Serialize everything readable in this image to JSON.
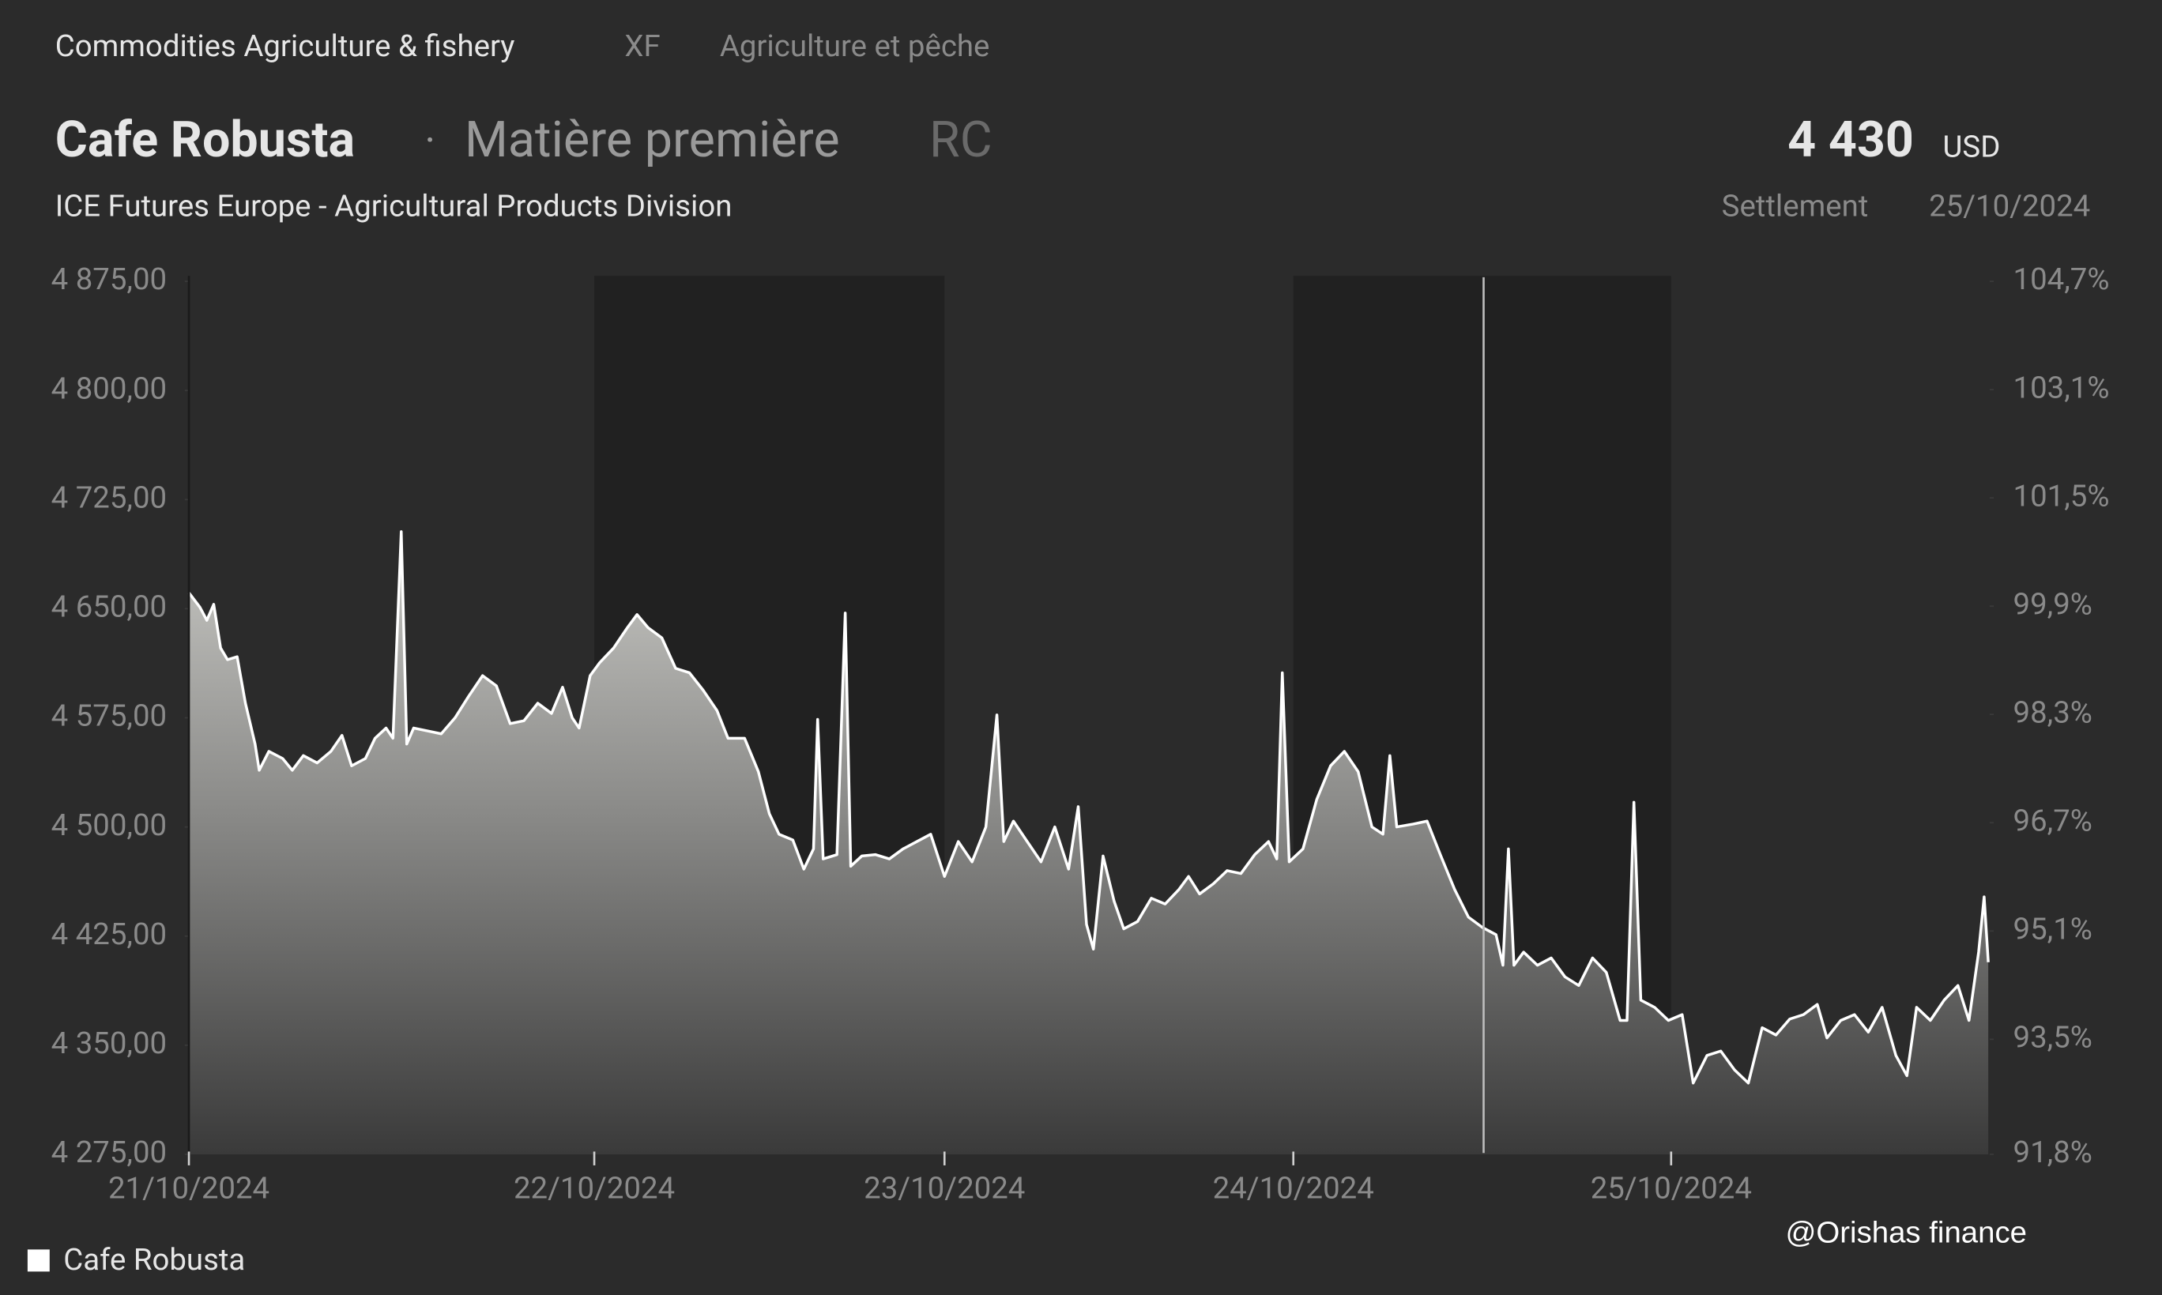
{
  "header": {
    "category": "Commodities Agriculture & fishery",
    "code": "XF",
    "category_fr": "Agriculture et pêche",
    "name": "Cafe Robusta",
    "separator": "·",
    "kind": "Matière première",
    "symbol": "RC",
    "price": "4 430",
    "currency": "USD",
    "exchange": "ICE Futures Europe - Agricultural Products Division",
    "price_type": "Settlement",
    "price_date": "25/10/2024"
  },
  "watermark": "@Orishas finance",
  "chart_data": {
    "type": "area",
    "x": [
      0,
      8,
      13,
      18,
      23,
      28,
      35,
      41,
      48,
      51,
      58,
      68,
      75,
      83,
      93,
      103,
      111,
      118,
      128,
      135,
      143,
      148,
      154,
      158,
      163,
      173,
      183,
      193,
      203,
      213,
      223,
      233,
      243,
      253,
      263,
      271,
      278,
      283,
      291,
      298,
      308,
      318,
      325,
      333,
      343,
      353,
      363,
      373,
      383,
      391,
      403,
      413,
      421,
      428,
      438,
      446,
      453,
      456,
      460,
      470,
      476,
      480,
      488,
      498,
      508,
      518,
      528,
      538,
      548,
      558,
      568,
      578,
      586,
      591,
      598,
      608,
      618,
      628,
      638,
      645,
      651,
      656,
      663,
      671,
      678,
      688,
      698,
      708,
      718,
      725,
      733,
      743,
      753,
      763,
      773,
      783,
      789,
      793,
      798,
      808,
      818,
      828,
      838,
      848,
      858,
      866,
      871,
      876,
      888,
      898,
      908,
      918,
      928,
      938,
      948,
      953,
      957,
      961,
      968,
      978,
      988,
      998,
      1008,
      1018,
      1028,
      1038,
      1043,
      1048,
      1053,
      1063,
      1073,
      1083,
      1091,
      1101,
      1111,
      1121,
      1131,
      1141,
      1151,
      1161,
      1171,
      1181,
      1188,
      1198,
      1208,
      1218,
      1228,
      1238,
      1246,
      1253,
      1263,
      1273,
      1283,
      1291,
      1298,
      1302,
      1305
    ],
    "series": [
      {
        "name": "Cafe Robusta",
        "color": "#ffffff",
        "values": [
          4661,
          4651,
          4642,
          4653,
          4623,
          4615,
          4617,
          4585,
          4557,
          4539,
          4552,
          4547,
          4539,
          4549,
          4544,
          4552,
          4563,
          4542,
          4547,
          4561,
          4568,
          4561,
          4703,
          4557,
          4568,
          4566,
          4564,
          4575,
          4590,
          4604,
          4597,
          4571,
          4573,
          4585,
          4578,
          4596,
          4575,
          4568,
          4604,
          4613,
          4623,
          4637,
          4646,
          4637,
          4630,
          4609,
          4606,
          4594,
          4580,
          4561,
          4561,
          4538,
          4509,
          4495,
          4491,
          4471,
          4485,
          4574,
          4478,
          4481,
          4647,
          4473,
          4480,
          4481,
          4478,
          4485,
          4490,
          4495,
          4466,
          4490,
          4476,
          4500,
          4577,
          4490,
          4504,
          4490,
          4476,
          4500,
          4471,
          4514,
          4433,
          4416,
          4480,
          4449,
          4430,
          4435,
          4451,
          4447,
          4457,
          4466,
          4454,
          4461,
          4470,
          4468,
          4481,
          4490,
          4478,
          4606,
          4476,
          4485,
          4519,
          4542,
          4552,
          4538,
          4500,
          4495,
          4549,
          4500,
          4502,
          4504,
          4480,
          4457,
          4438,
          4431,
          4426,
          4405,
          4485,
          4405,
          4414,
          4405,
          4410,
          4397,
          4391,
          4410,
          4400,
          4367,
          4367,
          4517,
          4381,
          4376,
          4367,
          4371,
          4324,
          4343,
          4346,
          4333,
          4324,
          4362,
          4357,
          4368,
          4371,
          4378,
          4355,
          4367,
          4371,
          4359,
          4376,
          4343,
          4329,
          4376,
          4367,
          4381,
          4391,
          4367,
          4414,
          4452,
          4407
        ]
      }
    ],
    "xlim": [
      0,
      1305
    ],
    "xticks": [
      {
        "value": 0,
        "label": "21/10/2024"
      },
      {
        "value": 294,
        "label": "22/10/2024"
      },
      {
        "value": 548,
        "label": "23/10/2024"
      },
      {
        "value": 801,
        "label": "24/10/2024"
      },
      {
        "value": 1075,
        "label": "25/10/2024"
      }
    ],
    "ylim": [
      4275,
      4875
    ],
    "yticks": [
      {
        "value": 4875,
        "label": "4 875,00"
      },
      {
        "value": 4800,
        "label": "4 800,00"
      },
      {
        "value": 4725,
        "label": "4 725,00"
      },
      {
        "value": 4650,
        "label": "4 650,00"
      },
      {
        "value": 4575,
        "label": "4 575,00"
      },
      {
        "value": 4500,
        "label": "4 500,00"
      },
      {
        "value": 4425,
        "label": "4 425,00"
      },
      {
        "value": 4350,
        "label": "4 350,00"
      },
      {
        "value": 4275,
        "label": "4 275,00"
      }
    ],
    "y2lim": [
      91.8,
      104.7
    ],
    "y2ticks": [
      {
        "value": 104.7,
        "label": "104,7%"
      },
      {
        "value": 103.1,
        "label": "103,1%"
      },
      {
        "value": 101.5,
        "label": "101,5%"
      },
      {
        "value": 99.9,
        "label": "99,9%"
      },
      {
        "value": 98.3,
        "label": "98,3%"
      },
      {
        "value": 96.7,
        "label": "96,7%"
      },
      {
        "value": 95.1,
        "label": "95,1%"
      },
      {
        "value": 93.5,
        "label": "93,5%"
      },
      {
        "value": 91.8,
        "label": "91,8%"
      }
    ],
    "legend": "bottom-left"
  }
}
